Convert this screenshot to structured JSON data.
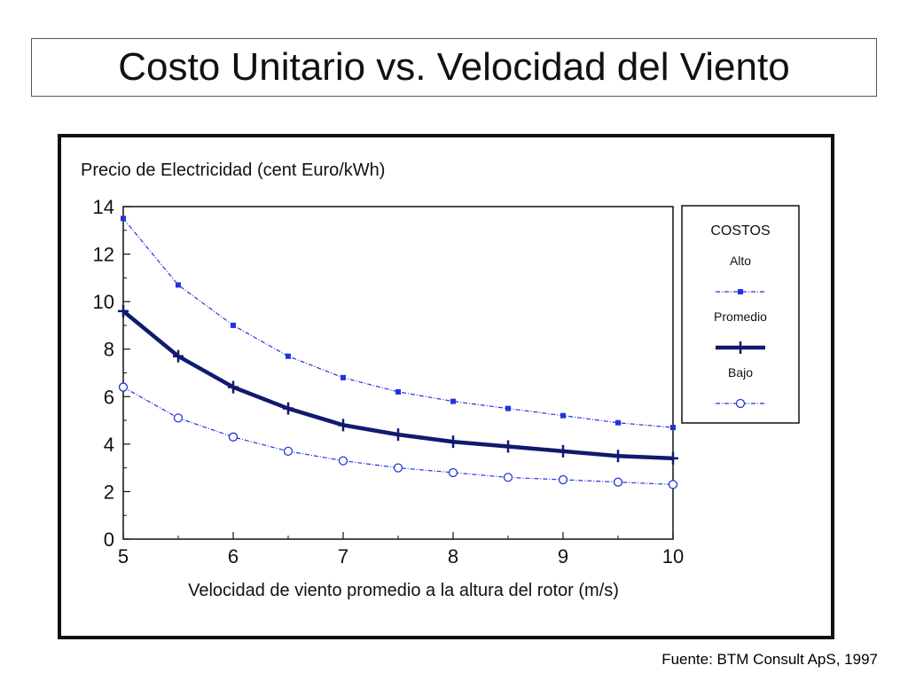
{
  "title": "Costo Unitario vs. Velocidad del Viento",
  "source": "Fuente: BTM Consult ApS, 1997",
  "colors": {
    "light": "#2233dd",
    "dark": "#101a6e",
    "frame": "#111111"
  },
  "chart_data": {
    "type": "line",
    "ylabel": "Precio de Electricidad (cent Euro/kWh)",
    "xlabel": "Velocidad de viento promedio a la altura del rotor (m/s)",
    "xlim": [
      5,
      10
    ],
    "ylim": [
      0,
      14
    ],
    "xticks": [
      "5",
      "6",
      "7",
      "8",
      "9",
      "10"
    ],
    "yticks": [
      "0",
      "2",
      "4",
      "6",
      "8",
      "10",
      "12",
      "14"
    ],
    "grid": false,
    "legend": {
      "title": "COSTOS",
      "placement": "right"
    },
    "x": [
      5,
      5.5,
      6,
      6.5,
      7,
      7.5,
      8,
      8.5,
      9,
      9.5,
      10
    ],
    "series": [
      {
        "name": "Alto",
        "values": [
          13.5,
          10.7,
          9.0,
          7.7,
          6.8,
          6.2,
          5.8,
          5.5,
          5.2,
          4.9,
          4.7
        ]
      },
      {
        "name": "Promedio",
        "values": [
          9.6,
          7.7,
          6.4,
          5.5,
          4.8,
          4.4,
          4.1,
          3.9,
          3.7,
          3.5,
          3.4
        ]
      },
      {
        "name": "Bajo",
        "values": [
          6.4,
          5.1,
          4.3,
          3.7,
          3.3,
          3.0,
          2.8,
          2.6,
          2.5,
          2.4,
          2.3
        ]
      }
    ]
  }
}
